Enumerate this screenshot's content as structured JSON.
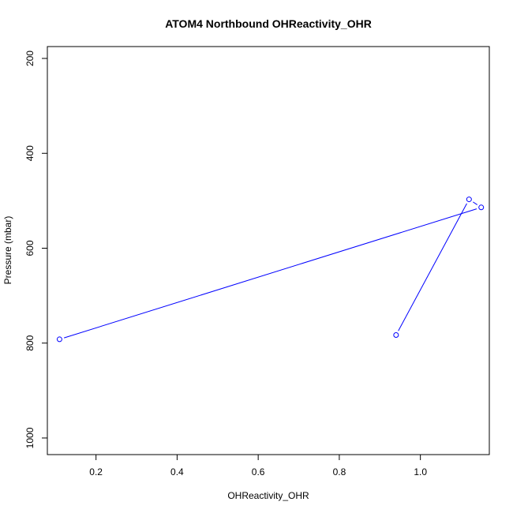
{
  "chart_data": {
    "type": "line",
    "title": "ATOM4 Northbound OHReactivity_OHR",
    "xlabel": "OHReactivity_OHR",
    "ylabel": "Pressure (mbar)",
    "xlim": [
      0.08,
      1.17
    ],
    "ylim": [
      1035,
      175
    ],
    "y_reversed": true,
    "xticks": [
      0.2,
      0.4,
      0.6,
      0.8,
      1.0
    ],
    "xtick_labels": [
      "0.2",
      "0.4",
      "0.6",
      "0.8",
      "1.0"
    ],
    "yticks": [
      200,
      400,
      600,
      800,
      1000
    ],
    "ytick_labels": [
      "200",
      "400",
      "600",
      "800",
      "1000"
    ],
    "grid": false,
    "series": [
      {
        "color": "#0000ff",
        "marker": "open-circle",
        "x": [
          0.94,
          1.12,
          1.15,
          0.11
        ],
        "y": [
          783,
          497,
          514,
          792
        ]
      }
    ]
  }
}
